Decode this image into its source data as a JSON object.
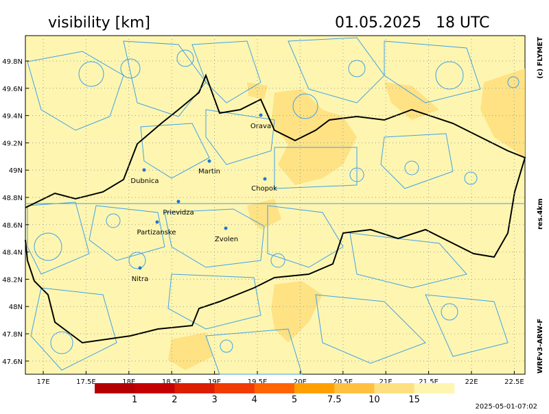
{
  "header": {
    "title": "visibility [km]",
    "datetime": "01.05.2025   18 UTC"
  },
  "side": {
    "copyright": "(c) FLYMET",
    "resolution": "res.4km",
    "model": "WRFv3-ARW-F"
  },
  "map": {
    "lat_ticks": [
      "49.8N",
      "49.6N",
      "49.4N",
      "49.2N",
      "49N",
      "48.8N",
      "48.6N",
      "48.4N",
      "48.2N",
      "48N",
      "47.8N",
      "47.6N"
    ],
    "lon_ticks": [
      "17E",
      "17.5E",
      "18E",
      "18.5E",
      "19E",
      "19.5E",
      "20E",
      "20.5E",
      "21E",
      "21.5E",
      "22E",
      "22.5E"
    ],
    "cities": [
      {
        "label": "Orava"
      },
      {
        "label": "Dubnica"
      },
      {
        "label": "Martin"
      },
      {
        "label": "Chopok"
      },
      {
        "label": "Prievidza"
      },
      {
        "label": "Partizanske"
      },
      {
        "label": "Zvolen"
      },
      {
        "label": "Nitra"
      }
    ]
  },
  "legend": {
    "labels": [
      1,
      2,
      3,
      4,
      5,
      7.5,
      10,
      15
    ],
    "colors": [
      "#b40000",
      "#c40000",
      "#dc1e00",
      "#f03c00",
      "#ff6400",
      "#ffa000",
      "#ffc040",
      "#fee080",
      "#fef6b0"
    ]
  },
  "footer": {
    "timestamp": "2025-05-01-07:02"
  }
}
